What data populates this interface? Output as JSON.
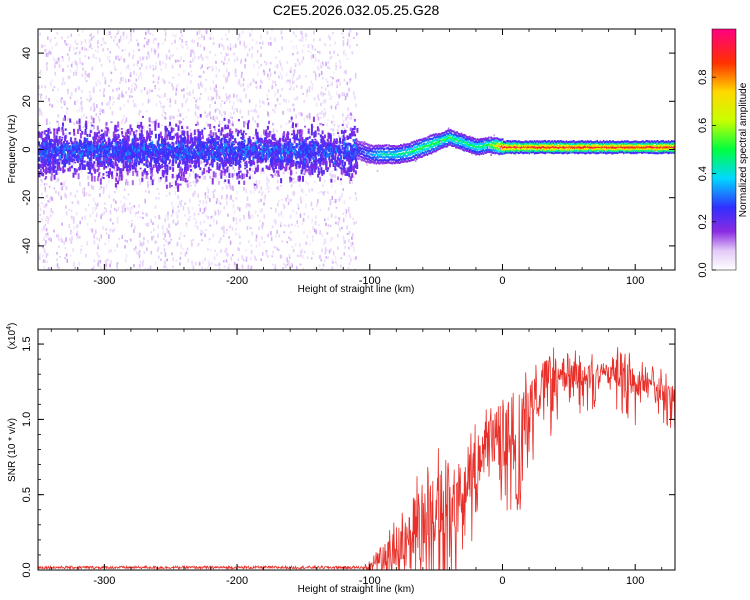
{
  "figure_title": "C2E5.2026.032.05.25.G28",
  "chart_data": [
    {
      "type": "heatmap",
      "title": "C2E5.2026.032.05.25.G28",
      "xlabel": "Height of straight line (km)",
      "ylabel": "Frequency (Hz)",
      "xlim": [
        -350,
        130
      ],
      "ylim": [
        -50,
        50
      ],
      "xticks": [
        -300,
        -200,
        -100,
        0,
        100
      ],
      "yticks": [
        -40,
        -20,
        0,
        20,
        40
      ],
      "grid": false,
      "colorbar": {
        "label": "Normalized spectral amplitude",
        "range": [
          0,
          1
        ],
        "ticks": [
          "0.0",
          "0.2",
          "0.4",
          "0.6",
          "0.8"
        ]
      },
      "noise_region_x": [
        -350,
        -110
      ],
      "ridge": {
        "x": [
          -110,
          -100,
          -90,
          -80,
          -70,
          -60,
          -50,
          -40,
          -30,
          -20,
          -10,
          0,
          10,
          20,
          40,
          60,
          80,
          100,
          130
        ],
        "frequency": [
          0,
          -2,
          -2,
          -2,
          -1,
          1,
          3,
          5,
          3,
          1,
          2,
          1,
          1,
          1,
          1,
          1,
          1,
          1,
          1
        ],
        "peak_amplitude": [
          0.25,
          0.35,
          0.45,
          0.45,
          0.5,
          0.55,
          0.55,
          0.55,
          0.5,
          0.5,
          0.55,
          0.95,
          0.95,
          0.95,
          0.95,
          0.95,
          0.95,
          0.95,
          0.95
        ]
      }
    },
    {
      "type": "line",
      "xlabel": "Height of straight line (km)",
      "ylabel": "SNR (10 * v/v)",
      "y_multiplier": "(x10^4)",
      "xlim": [
        -350,
        130
      ],
      "ylim": [
        0,
        1.6
      ],
      "xticks": [
        -300,
        -200,
        -100,
        0,
        100
      ],
      "yticks": [
        "0.0",
        "0.5",
        "1.0",
        "1.5"
      ],
      "grid": false,
      "color": "#e8302a",
      "x": [
        -350,
        -300,
        -200,
        -120,
        -105,
        -100,
        -90,
        -80,
        -70,
        -60,
        -50,
        -40,
        -30,
        -20,
        -10,
        -5,
        0,
        10,
        20,
        30,
        40,
        50,
        60,
        70,
        80,
        90,
        100,
        110,
        120,
        130
      ],
      "y": [
        0.01,
        0.01,
        0.01,
        0.01,
        0.01,
        0.04,
        0.1,
        0.15,
        0.28,
        0.32,
        0.4,
        0.5,
        0.55,
        0.7,
        0.9,
        0.95,
        0.85,
        1.0,
        1.15,
        1.25,
        1.3,
        1.3,
        1.28,
        1.3,
        1.32,
        1.33,
        1.25,
        1.3,
        1.2,
        1.12
      ],
      "upper_envelope": [
        0.02,
        0.02,
        0.03,
        0.03,
        0.04,
        0.08,
        0.2,
        0.35,
        0.6,
        0.75,
        0.8,
        0.95,
        0.9,
        1.0,
        1.1,
        1.12,
        1.15,
        1.4,
        1.45,
        1.55,
        1.55,
        1.48,
        1.45,
        1.45,
        1.4,
        1.55,
        1.45,
        1.4,
        1.35,
        1.25
      ]
    }
  ]
}
